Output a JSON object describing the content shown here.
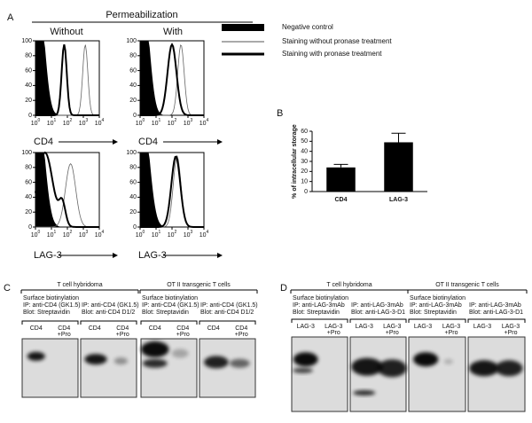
{
  "panel_a": {
    "label": "A",
    "header": "Permeabilization",
    "conditions": [
      "Without",
      "With"
    ],
    "legend": [
      "Negative control",
      "Staining without pronase treatment",
      "Staining with pronase treatment"
    ],
    "y_ticks": [
      0,
      20,
      40,
      60,
      80,
      100
    ],
    "x_ticks": [
      {
        "base": "10",
        "exp": "0"
      },
      {
        "base": "10",
        "exp": "1"
      },
      {
        "base": "10",
        "exp": "2"
      },
      {
        "base": "10",
        "exp": "3"
      },
      {
        "base": "10",
        "exp": "4"
      }
    ],
    "axis_labels": [
      "CD4",
      "LAG-3"
    ]
  },
  "chart_data": {
    "type": "bar",
    "label": "B",
    "ylabel": "% of intracellular storage",
    "categories": [
      "CD4",
      "LAG-3"
    ],
    "values": [
      24,
      49
    ],
    "errors": [
      3,
      9
    ],
    "color": "#000000",
    "ylim": [
      0,
      60
    ],
    "yticks": [
      0,
      10,
      20,
      30,
      40,
      50,
      60
    ]
  },
  "panel_c": {
    "label": "C",
    "groups": [
      {
        "title": "T cell hybridoma",
        "method": "Surface biotinylation",
        "blots": [
          {
            "ip": "IP: anti-CD4 (GK1.5)",
            "blot": "Blot: Streptavidin",
            "lanes": [
              [
                "CD4"
              ],
              [
                "CD4",
                "+Pro"
              ]
            ]
          },
          {
            "ip": "IP: anti-CD4 (GK1.5)",
            "blot": "Blot: anti-CD4 D1/2",
            "lanes": [
              [
                "CD4"
              ],
              [
                "CD4",
                "+Pro"
              ]
            ]
          }
        ]
      },
      {
        "title": "OT II transgenic T cells",
        "method": "Surface biotinylation",
        "blots": [
          {
            "ip": "IP: anti-CD4 (GK1.5)",
            "blot": "Blot: Streptavidin",
            "lanes": [
              [
                "CD4"
              ],
              [
                "CD4",
                "+Pro"
              ]
            ]
          },
          {
            "ip": "IP: anti-CD4 (GK1.5)",
            "blot": "Blot: anti-CD4 D1/2",
            "lanes": [
              [
                "CD4"
              ],
              [
                "CD4",
                "+Pro"
              ]
            ]
          }
        ]
      }
    ]
  },
  "panel_d": {
    "label": "D",
    "groups": [
      {
        "title": "T cell hybridoma",
        "method": "Surface biotinylation",
        "blots": [
          {
            "ip": "IP: anti-LAG-3mAb",
            "blot": "Blot: Streptavidin",
            "lanes": [
              [
                "LAG-3"
              ],
              [
                "LAG-3",
                "+Pro"
              ]
            ]
          },
          {
            "ip": "IP: anti-LAG-3mAb",
            "blot": "Blot: anti-LAG-3-D1",
            "lanes": [
              [
                "LAG-3"
              ],
              [
                "LAG-3",
                "+Pro"
              ]
            ]
          }
        ]
      },
      {
        "title": "OT II transgenic T cells",
        "method": "Surface biotinylation",
        "blots": [
          {
            "ip": "IP: anti-LAG-3mAb",
            "blot": "Blot: Streptavidin",
            "lanes": [
              [
                "LAG-3"
              ],
              [
                "LAG-3",
                "+Pro"
              ]
            ]
          },
          {
            "ip": "IP: anti-LAG-3mAb",
            "blot": "Blot: anti-LAG-3-D1",
            "lanes": [
              [
                "LAG-3"
              ],
              [
                "LAG-3",
                "+Pro"
              ]
            ]
          }
        ]
      }
    ]
  }
}
